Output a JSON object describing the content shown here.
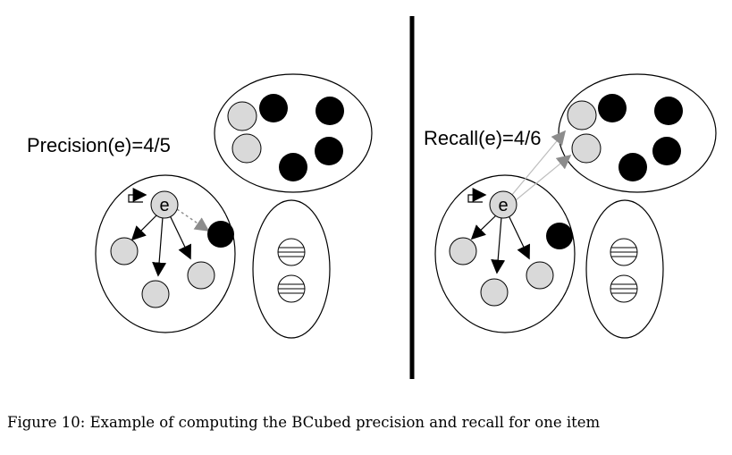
{
  "left_panel": {
    "metric_label": "Precision(e)=4/5",
    "focus_item": "e"
  },
  "right_panel": {
    "metric_label": "Recall(e)=4/6",
    "focus_item": "e"
  },
  "caption": "Figure 10: Example of computing the BCubed precision and recall for one item",
  "colors": {
    "gray_item": "#d9d9d9",
    "black_item": "#000000",
    "gray_arrow": "#8c8c8c",
    "light_arrow": "#bdbdbd"
  }
}
